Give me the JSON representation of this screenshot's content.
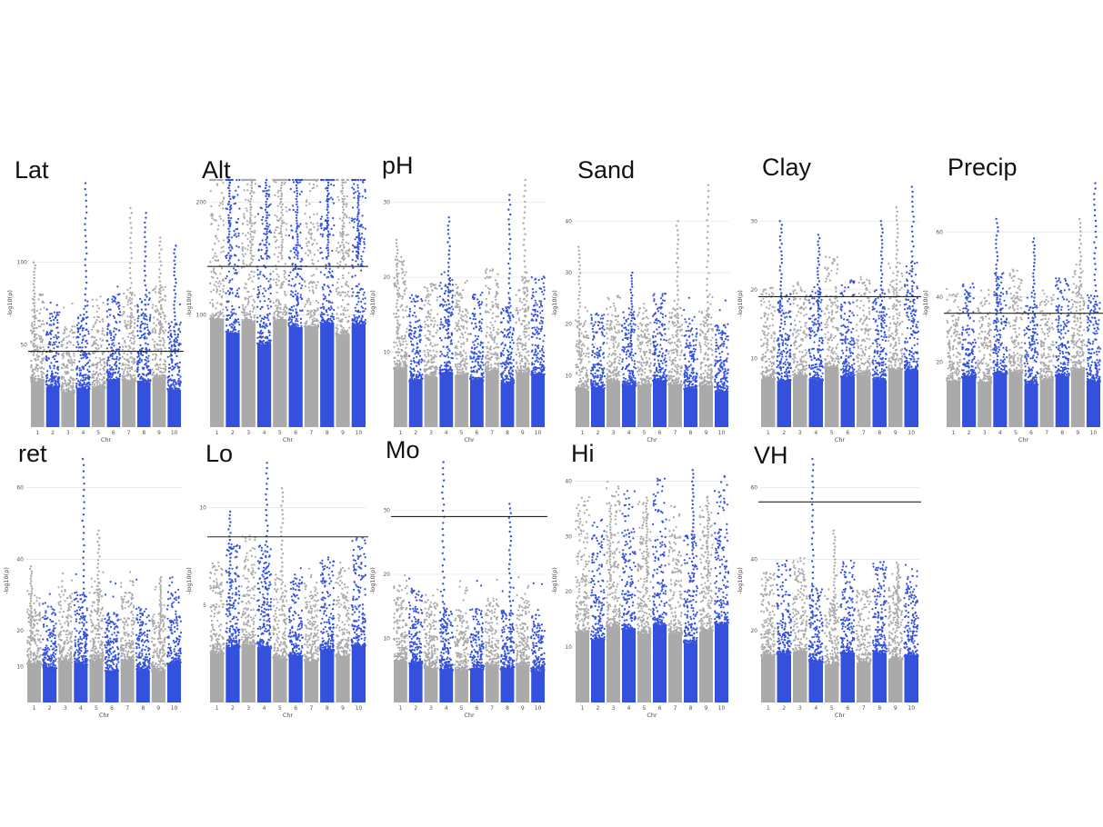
{
  "figure": {
    "colors": {
      "odd_chr": "#aaaaaa",
      "even_chr": "#3451dd",
      "threshold": "#222222",
      "grid": "#e4e4e4"
    }
  },
  "chart_data": [
    {
      "type": "scatter",
      "title": "Lat",
      "xlabel": "Chr",
      "ylabel": "-log10(p)",
      "ylim": [
        0,
        150
      ],
      "x_ticks": [
        "1",
        "2",
        "3",
        "4",
        "5",
        "6",
        "7",
        "8",
        "9",
        "10"
      ],
      "y_ticks": [
        50,
        100
      ],
      "threshold": 46,
      "baseline": 45,
      "peaks": [
        [
          1,
          100
        ],
        [
          4,
          148
        ],
        [
          7,
          133
        ],
        [
          8,
          130
        ],
        [
          9,
          115
        ],
        [
          10,
          110
        ]
      ]
    },
    {
      "type": "scatter",
      "title": "Alt",
      "xlabel": "Chr",
      "ylabel": "-log10(p)",
      "ylim": [
        0,
        220
      ],
      "x_ticks": [
        "1",
        "2",
        "3",
        "4",
        "5",
        "6",
        "7",
        "8",
        "9",
        "10"
      ],
      "y_ticks": [
        100,
        200
      ],
      "threshold": 143,
      "baseline": 150,
      "peaks": [
        [
          2,
          220
        ],
        [
          3,
          220
        ],
        [
          4,
          220
        ],
        [
          5,
          220
        ],
        [
          6,
          220
        ],
        [
          8,
          220
        ],
        [
          9,
          220
        ],
        [
          10,
          210
        ]
      ]
    },
    {
      "type": "scatter",
      "title": "pH",
      "xlabel": "Chr",
      "ylabel": "-log10(p)",
      "ylim": [
        0,
        33
      ],
      "x_ticks": [
        "1",
        "2",
        "3",
        "4",
        "5",
        "6",
        "7",
        "8",
        "9",
        "10"
      ],
      "y_ticks": [
        10,
        20,
        30
      ],
      "threshold": null,
      "baseline": 12,
      "peaks": [
        [
          1,
          25
        ],
        [
          4,
          28
        ],
        [
          8,
          31
        ],
        [
          9,
          33
        ]
      ]
    },
    {
      "type": "scatter",
      "title": "Sand",
      "xlabel": "Chr",
      "ylabel": "-log10(p)",
      "ylim": [
        0,
        48
      ],
      "x_ticks": [
        "1",
        "2",
        "3",
        "4",
        "5",
        "6",
        "7",
        "8",
        "9",
        "10"
      ],
      "y_ticks": [
        10,
        20,
        30,
        40
      ],
      "threshold": null,
      "baseline": 14,
      "peaks": [
        [
          1,
          35
        ],
        [
          4,
          30
        ],
        [
          7,
          40
        ],
        [
          9,
          47
        ]
      ]
    },
    {
      "type": "scatter",
      "title": "Clay",
      "xlabel": "Chr",
      "ylabel": "-log10(p)",
      "ylim": [
        0,
        36
      ],
      "x_ticks": [
        "1",
        "2",
        "3",
        "4",
        "5",
        "6",
        "7",
        "8",
        "9",
        "10"
      ],
      "y_ticks": [
        10,
        20,
        30
      ],
      "threshold": 19,
      "baseline": 14,
      "peaks": [
        [
          2,
          30
        ],
        [
          4,
          28
        ],
        [
          8,
          30
        ],
        [
          9,
          32
        ],
        [
          10,
          35
        ]
      ]
    },
    {
      "type": "scatter",
      "title": "Precip",
      "xlabel": "Chr",
      "ylabel": "-log10(p)",
      "ylim": [
        0,
        76
      ],
      "x_ticks": [
        "1",
        "2",
        "3",
        "4",
        "5",
        "6",
        "7",
        "8",
        "9",
        "10"
      ],
      "y_ticks": [
        20,
        40,
        60
      ],
      "threshold": 35,
      "baseline": 27,
      "peaks": [
        [
          4,
          64
        ],
        [
          6,
          58
        ],
        [
          9,
          64
        ],
        [
          10,
          75
        ]
      ]
    },
    {
      "type": "scatter",
      "title": "ret",
      "xlabel": "Chr",
      "ylabel": "-log10(p)",
      "ylim": [
        0,
        68
      ],
      "x_ticks": [
        "1",
        "2",
        "3",
        "4",
        "5",
        "6",
        "7",
        "8",
        "9",
        "10"
      ],
      "y_ticks": [
        10,
        20,
        40,
        60
      ],
      "threshold": null,
      "baseline": 18,
      "peaks": [
        [
          1,
          38
        ],
        [
          4,
          68
        ],
        [
          5,
          48
        ],
        [
          9,
          35
        ]
      ]
    },
    {
      "type": "scatter",
      "title": "Lo",
      "xlabel": "Chr",
      "ylabel": "-log10(p)",
      "ylim": [
        0,
        12.5
      ],
      "x_ticks": [
        "1",
        "2",
        "3",
        "4",
        "5",
        "6",
        "7",
        "8",
        "9",
        "10"
      ],
      "y_ticks": [
        5,
        10
      ],
      "threshold": 8.5,
      "baseline": 4.5,
      "peaks": [
        [
          2,
          9.8
        ],
        [
          4,
          12.3
        ],
        [
          5,
          11
        ]
      ]
    },
    {
      "type": "scatter",
      "title": "Mo",
      "xlabel": "Chr",
      "ylabel": "-log10(p)",
      "ylim": [
        0,
        38
      ],
      "x_ticks": [
        "1",
        "2",
        "3",
        "4",
        "5",
        "6",
        "7",
        "8",
        "9",
        "10"
      ],
      "y_ticks": [
        10,
        20,
        30
      ],
      "threshold": 29,
      "baseline": 10,
      "peaks": [
        [
          4,
          37.5
        ],
        [
          8,
          31
        ]
      ]
    },
    {
      "type": "scatter",
      "title": "Hi",
      "xlabel": "Chr",
      "ylabel": "-log10(p)",
      "ylim": [
        0,
        44
      ],
      "x_ticks": [
        "1",
        "2",
        "3",
        "4",
        "5",
        "6",
        "7",
        "8",
        "9",
        "10"
      ],
      "y_ticks": [
        10,
        20,
        30,
        40
      ],
      "threshold": null,
      "baseline": 22,
      "peaks": [
        [
          3,
          36
        ],
        [
          5,
          37
        ],
        [
          8,
          42
        ],
        [
          9,
          37
        ]
      ]
    },
    {
      "type": "scatter",
      "title": "VH",
      "xlabel": "Chr",
      "ylabel": "-log10(p)",
      "ylim": [
        0,
        68
      ],
      "x_ticks": [
        "1",
        "2",
        "3",
        "4",
        "5",
        "6",
        "7",
        "8",
        "9",
        "10"
      ],
      "y_ticks": [
        20,
        40,
        60
      ],
      "threshold": 56,
      "baseline": 22,
      "peaks": [
        [
          4,
          68
        ],
        [
          5,
          48
        ],
        [
          9,
          39
        ]
      ]
    }
  ]
}
